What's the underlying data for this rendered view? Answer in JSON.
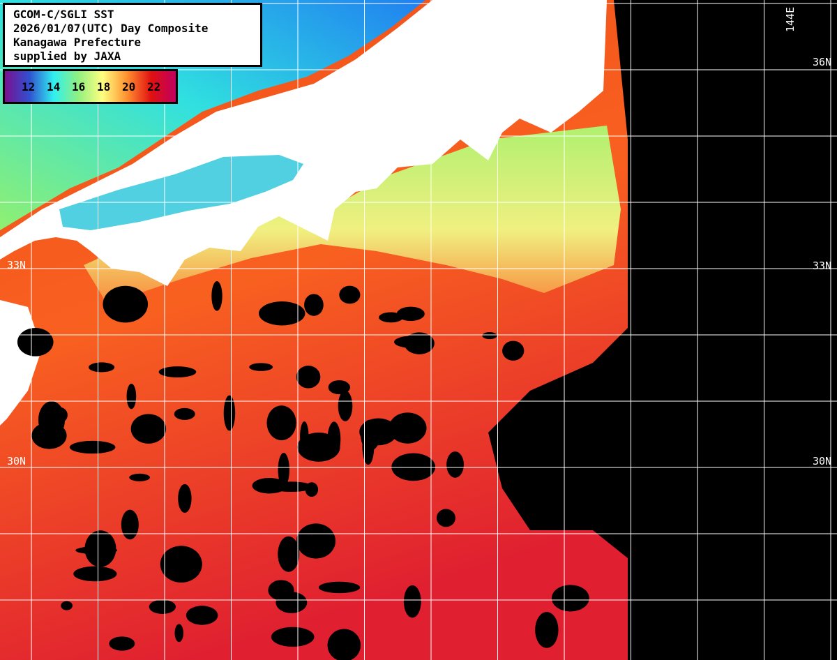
{
  "title": {
    "lines": [
      "GCOM-C/SGLI SST",
      "2026/01/07(UTC) Day Composite",
      "Kanagawa Prefecture",
      "supplied by JAXA"
    ]
  },
  "colorbar": {
    "unit_ticks": [
      "12",
      "14",
      "16",
      "18",
      "20",
      "22"
    ],
    "colors": [
      "#7a1090",
      "#3050d0",
      "#30f0f0",
      "#90f080",
      "#ffff80",
      "#ff9030",
      "#e01010",
      "#c00060"
    ]
  },
  "grid_labels": {
    "lon": [
      "144E"
    ],
    "lat_right": [
      "36N",
      "33N",
      "30N"
    ],
    "lat_left": [
      "33N",
      "30N"
    ]
  },
  "colors": {
    "land": "#ffffff",
    "no_data": "#000000",
    "grid": "#ffffff",
    "warm_sea": "#f04010",
    "coastal_sea": "#a0f070"
  }
}
